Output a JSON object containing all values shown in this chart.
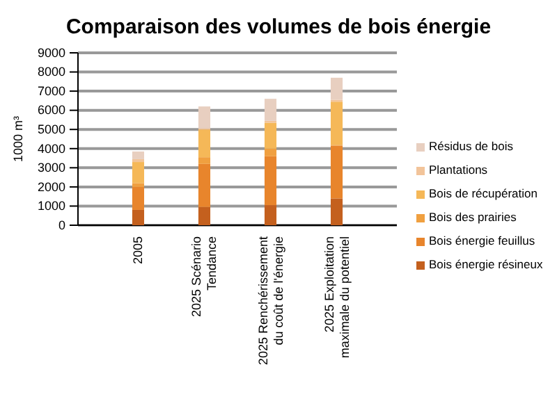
{
  "chart_data": {
    "type": "bar",
    "title": "Comparaison des volumes de bois énergie",
    "ylabel": "1000 m³",
    "categories": [
      "2005",
      "2025 Scénario Tendance",
      "2025 Renchérissement du coût de l'énergie",
      "2025 Exploitation maximale du potentiel"
    ],
    "stacked": true,
    "ylim": [
      0,
      9000
    ],
    "yticks": [
      0,
      1000,
      2000,
      3000,
      4000,
      5000,
      6000,
      7000,
      8000,
      9000
    ],
    "grid": "y",
    "legend": "right",
    "series": [
      {
        "name": "Bois énergie résineux",
        "color": "#c4601e",
        "values": [
          800,
          950,
          1050,
          1400
        ]
      },
      {
        "name": "Bois énergie feuillus",
        "color": "#e8852c",
        "values": [
          1200,
          2250,
          2550,
          2750
        ]
      },
      {
        "name": "Bois des prairies",
        "color": "#f0a040",
        "values": [
          200,
          350,
          400,
          50
        ]
      },
      {
        "name": "Bois de récupération",
        "color": "#f5b858",
        "values": [
          1100,
          1450,
          1350,
          2250
        ]
      },
      {
        "name": "Plantations",
        "color": "#f2c49a",
        "values": [
          150,
          50,
          100,
          100
        ]
      },
      {
        "name": "Résidus de bois",
        "color": "#e8cfc0",
        "values": [
          400,
          1150,
          1150,
          1150
        ]
      }
    ]
  }
}
